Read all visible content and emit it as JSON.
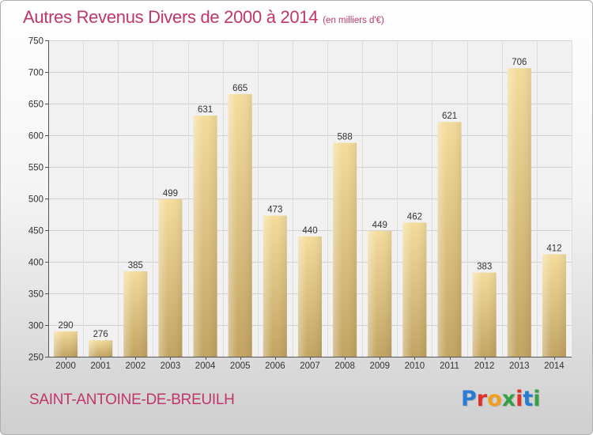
{
  "header": {
    "title": "Autres Revenus Divers de 2000 à 2014",
    "subtitle": "(en milliers d'€)"
  },
  "footer": {
    "commune": "SAINT-ANTOINE-DE-BREUILH",
    "logo": [
      "P",
      "r",
      "o",
      "x",
      "i",
      "t",
      "i"
    ]
  },
  "colors": {
    "title": "#c0356a",
    "bar_light": "#f4dc9c",
    "bar_dark": "#c2a462",
    "logo": [
      "#2a7bd4",
      "#e0302a",
      "#f0a020",
      "#36a046",
      "#e0302a",
      "#2a7bd4",
      "#36a046"
    ]
  },
  "chart_data": {
    "type": "bar",
    "categories": [
      "2000",
      "2001",
      "2002",
      "2003",
      "2004",
      "2005",
      "2006",
      "2007",
      "2008",
      "2009",
      "2010",
      "2011",
      "2012",
      "2013",
      "2014"
    ],
    "values": [
      290,
      276,
      385,
      499,
      631,
      665,
      473,
      440,
      588,
      449,
      462,
      621,
      383,
      706,
      412
    ],
    "ylim": [
      250,
      750
    ],
    "yticks": [
      250,
      300,
      350,
      400,
      450,
      500,
      550,
      600,
      650,
      700,
      750
    ],
    "grid": true,
    "data_labels": true
  }
}
